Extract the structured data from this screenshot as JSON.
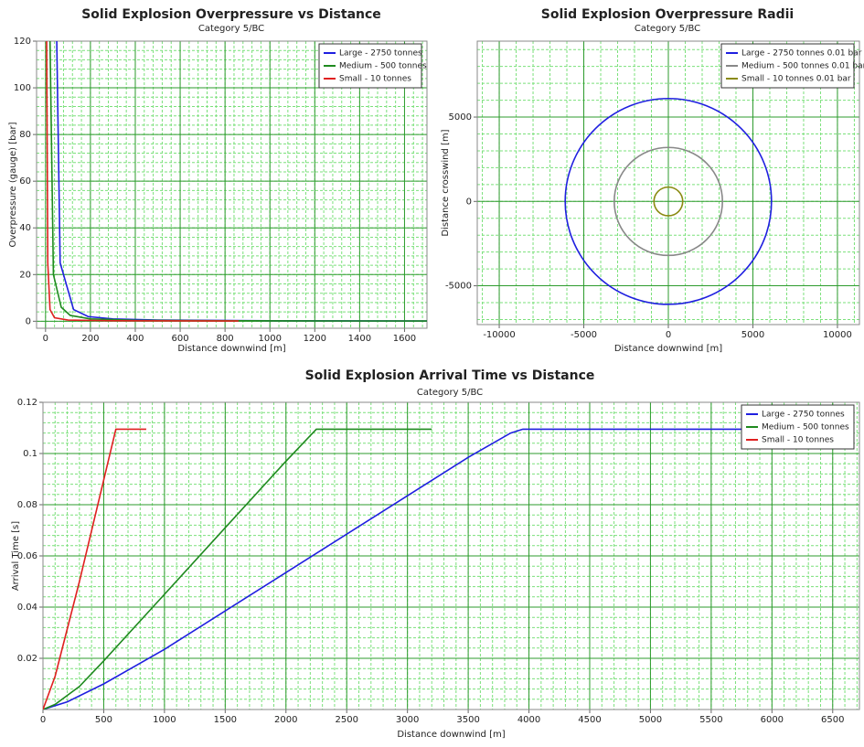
{
  "chart_data": [
    {
      "type": "line",
      "title": "Solid Explosion Overpressure vs Distance",
      "subtitle": "Category 5/BC",
      "x_label": "Distance downwind [m]",
      "y_label": "Overpressure (gauge) [bar]",
      "xlim": [
        -40,
        1700
      ],
      "xticks": [
        0,
        200,
        400,
        600,
        800,
        1000,
        1200,
        1400,
        1600
      ],
      "ylim": [
        -3,
        120
      ],
      "yticks": [
        0,
        20,
        40,
        60,
        80,
        100,
        120
      ],
      "grid": true,
      "legend": "top-right",
      "series": [
        {
          "name": "Large - 2750 tonnes",
          "color": "#1f1fe0",
          "x": [
            50,
            65,
            125,
            190,
            300,
            500,
            1000,
            1700
          ],
          "values": [
            120,
            25,
            5,
            2,
            1,
            0.5,
            0.2,
            0.1
          ]
        },
        {
          "name": "Medium - 500 tonnes",
          "color": "#1f8a1f",
          "x": [
            20,
            35,
            70,
            110,
            200,
            400,
            800,
            1700
          ],
          "values": [
            120,
            20,
            6,
            2.5,
            1,
            0.4,
            0.2,
            0.1
          ]
        },
        {
          "name": "Small - 10 tonnes",
          "color": "#e02020",
          "x": [
            5,
            10,
            20,
            40,
            100,
            300,
            860
          ],
          "values": [
            120,
            25,
            5,
            1.5,
            0.5,
            0.2,
            0.1
          ]
        }
      ]
    },
    {
      "type": "circle",
      "title": "Solid Explosion Overpressure Radii",
      "subtitle": "Category 5/BC",
      "x_label": "Distance downwind [m]",
      "y_label": "Distance crosswind [m]",
      "xlim": [
        -11300,
        11300
      ],
      "xticks": [
        -10000,
        -5000,
        0,
        5000,
        10000
      ],
      "ylim": [
        -7300,
        9500
      ],
      "yticks": [
        -5000,
        0,
        5000
      ],
      "grid": true,
      "legend": "top-right",
      "series": [
        {
          "name": "Large - 2750 tonnes 0.01 bar",
          "color": "#1f1fe0",
          "values": [
            6100
          ]
        },
        {
          "name": "Medium - 500 tonnes 0.01 bar",
          "color": "#888888",
          "values": [
            3200
          ]
        },
        {
          "name": "Small - 10 tonnes 0.01 bar",
          "color": "#8a8a10",
          "values": [
            850
          ]
        }
      ]
    },
    {
      "type": "line",
      "title": "Solid Explosion Arrival Time vs Distance",
      "subtitle": "Category 5/BC",
      "x_label": "Distance downwind [m]",
      "y_label": "Arrival Time [s]",
      "xlim": [
        0,
        6720
      ],
      "xticks": [
        0,
        500,
        1000,
        1500,
        2000,
        2500,
        3000,
        3500,
        4000,
        4500,
        5000,
        5500,
        6000,
        6500
      ],
      "ylim": [
        0,
        0.12
      ],
      "yticks": [
        0.02,
        0.04,
        0.06,
        0.08,
        0.1,
        0.12
      ],
      "grid": true,
      "legend": "top-right",
      "series": [
        {
          "name": "Large - 2750 tonnes",
          "color": "#1f1fe0",
          "x": [
            0,
            200,
            500,
            1000,
            2000,
            3000,
            3500,
            3850,
            3950,
            5760
          ],
          "values": [
            0,
            0.003,
            0.01,
            0.0235,
            0.0535,
            0.0835,
            0.0985,
            0.108,
            0.1095,
            0.1095
          ]
        },
        {
          "name": "Medium - 500 tonnes",
          "color": "#1f8a1f",
          "x": [
            0,
            100,
            300,
            500,
            1000,
            1500,
            2000,
            2200,
            2250,
            3200
          ],
          "values": [
            0,
            0.002,
            0.009,
            0.019,
            0.045,
            0.071,
            0.097,
            0.107,
            0.1095,
            0.1095
          ]
        },
        {
          "name": "Small - 10 tonnes",
          "color": "#e02020",
          "x": [
            0,
            100,
            300,
            600,
            850
          ],
          "values": [
            0,
            0.013,
            0.05,
            0.1095,
            0.1095
          ]
        }
      ]
    }
  ]
}
